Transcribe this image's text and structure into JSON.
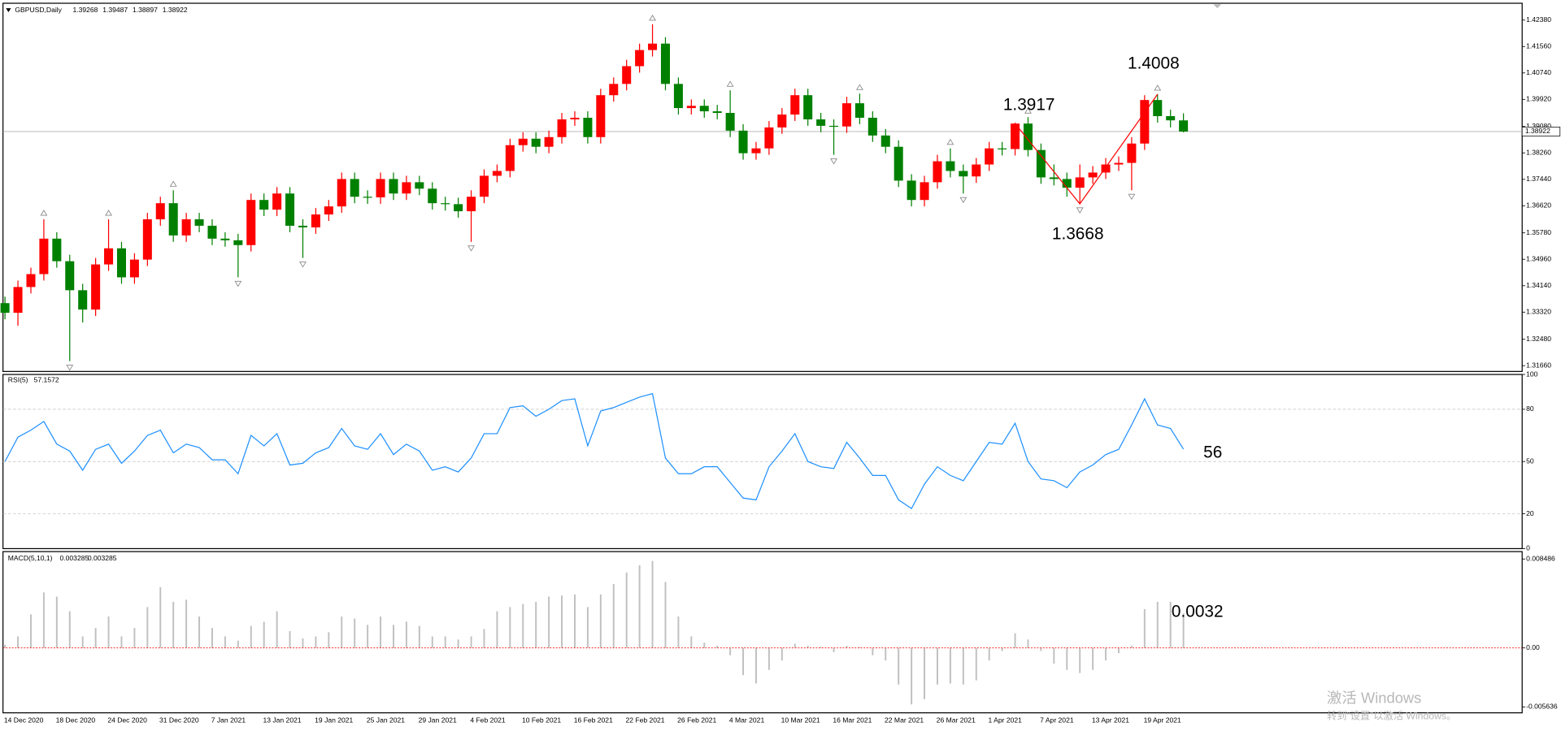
{
  "chart_data": [
    {
      "type": "candlestick",
      "title": "GBPUSD,Daily",
      "categories": [
        "14 Dec 2020",
        null,
        null,
        null,
        "18 Dec 2020",
        null,
        null,
        null,
        "24 Dec 2020",
        null,
        null,
        null,
        "31 Dec 2020",
        null,
        null,
        null,
        "7 Jan 2021",
        null,
        null,
        null,
        "13 Jan 2021",
        null,
        null,
        null,
        "19 Jan 2021",
        null,
        null,
        null,
        "25 Jan 2021",
        null,
        null,
        null,
        "29 Jan 2021",
        null,
        null,
        null,
        "4 Feb 2021",
        null,
        null,
        null,
        "10 Feb 2021",
        null,
        null,
        null,
        "16 Feb 2021",
        null,
        null,
        null,
        "22 Feb 2021",
        null,
        null,
        null,
        "26 Feb 2021",
        null,
        null,
        null,
        "4 Mar 2021",
        null,
        null,
        null,
        "10 Mar 2021",
        null,
        null,
        null,
        "16 Mar 2021",
        null,
        null,
        null,
        "22 Mar 2021",
        null,
        null,
        null,
        "26 Mar 2021",
        null,
        null,
        null,
        "1 Apr 2021",
        null,
        null,
        null,
        "7 Apr 2021",
        null,
        null,
        null,
        "13 Apr 2021",
        null,
        null,
        null,
        "19 Apr 2021",
        null,
        null,
        null
      ],
      "open": [
        1.336,
        1.333,
        1.341,
        1.345,
        1.356,
        1.349,
        1.34,
        1.334,
        1.348,
        1.353,
        1.344,
        1.3495,
        1.362,
        1.367,
        1.357,
        1.362,
        1.36,
        1.356,
        1.3555,
        1.354,
        1.368,
        1.365,
        1.37,
        1.36,
        1.3595,
        1.3635,
        1.366,
        1.3745,
        1.369,
        1.3688,
        1.3745,
        1.37,
        1.3735,
        1.3715,
        1.367,
        1.3667,
        1.3645,
        1.369,
        1.3755,
        1.377,
        1.385,
        1.387,
        1.3845,
        1.3875,
        1.393,
        1.3935,
        1.3875,
        1.4005,
        1.404,
        1.4095,
        1.4145,
        1.4165,
        1.404,
        1.3965,
        1.3972,
        1.3955,
        1.395,
        1.3895,
        1.3825,
        1.384,
        1.3905,
        1.3945,
        1.4005,
        1.393,
        1.391,
        1.3908,
        1.398,
        1.3935,
        1.388,
        1.3845,
        1.374,
        1.368,
        1.3735,
        1.38,
        1.377,
        1.3753,
        1.379,
        1.384,
        1.3838,
        1.3917,
        1.3835,
        1.375,
        1.3745,
        1.3718,
        1.375,
        1.3765,
        1.379,
        1.3795,
        1.3855,
        1.399,
        1.394,
        1.39268
      ],
      "high": [
        1.338,
        1.343,
        1.347,
        1.362,
        1.358,
        1.351,
        1.342,
        1.35,
        1.362,
        1.355,
        1.3515,
        1.364,
        1.369,
        1.371,
        1.364,
        1.364,
        1.362,
        1.358,
        1.3575,
        1.37,
        1.37,
        1.372,
        1.372,
        1.362,
        1.3655,
        1.368,
        1.3765,
        1.3765,
        1.371,
        1.3765,
        1.3765,
        1.3755,
        1.3755,
        1.3735,
        1.369,
        1.3687,
        1.371,
        1.3775,
        1.379,
        1.387,
        1.389,
        1.389,
        1.3895,
        1.395,
        1.3955,
        1.3955,
        1.4025,
        1.406,
        1.4115,
        1.4165,
        1.4225,
        1.4185,
        1.406,
        1.3992,
        1.3992,
        1.3975,
        1.402,
        1.3915,
        1.386,
        1.3925,
        1.3965,
        1.4025,
        1.4025,
        1.395,
        1.393,
        1.4,
        1.401,
        1.3955,
        1.39,
        1.3865,
        1.376,
        1.3755,
        1.382,
        1.384,
        1.379,
        1.381,
        1.386,
        1.386,
        1.392,
        1.3937,
        1.3855,
        1.379,
        1.3765,
        1.379,
        1.3785,
        1.381,
        1.3815,
        1.3875,
        1.4005,
        1.4008,
        1.396,
        1.39487
      ],
      "low": [
        1.331,
        1.329,
        1.339,
        1.343,
        1.347,
        1.318,
        1.33,
        1.332,
        1.346,
        1.342,
        1.342,
        1.3475,
        1.36,
        1.355,
        1.355,
        1.358,
        1.354,
        1.3535,
        1.344,
        1.352,
        1.363,
        1.363,
        1.358,
        1.35,
        1.3575,
        1.3615,
        1.364,
        1.367,
        1.3668,
        1.3668,
        1.368,
        1.368,
        1.3695,
        1.365,
        1.3647,
        1.3625,
        1.355,
        1.367,
        1.3735,
        1.375,
        1.383,
        1.3825,
        1.3825,
        1.3855,
        1.391,
        1.3855,
        1.3855,
        1.3985,
        1.402,
        1.4075,
        1.4125,
        1.402,
        1.3945,
        1.3945,
        1.3935,
        1.393,
        1.3875,
        1.3805,
        1.3805,
        1.382,
        1.3885,
        1.3925,
        1.391,
        1.389,
        1.382,
        1.3888,
        1.3915,
        1.386,
        1.3825,
        1.372,
        1.366,
        1.366,
        1.3715,
        1.375,
        1.37,
        1.3733,
        1.377,
        1.3818,
        1.3818,
        1.3815,
        1.373,
        1.3725,
        1.369,
        1.3668,
        1.373,
        1.3745,
        1.377,
        1.371,
        1.3835,
        1.392,
        1.3905,
        1.38897
      ],
      "close": [
        1.333,
        1.341,
        1.345,
        1.356,
        1.349,
        1.34,
        1.334,
        1.348,
        1.353,
        1.344,
        1.3495,
        1.362,
        1.367,
        1.357,
        1.362,
        1.36,
        1.356,
        1.3555,
        1.354,
        1.368,
        1.365,
        1.37,
        1.36,
        1.3595,
        1.3635,
        1.366,
        1.3745,
        1.369,
        1.3688,
        1.3745,
        1.37,
        1.3735,
        1.3715,
        1.367,
        1.3667,
        1.3645,
        1.369,
        1.3755,
        1.377,
        1.385,
        1.387,
        1.3845,
        1.3875,
        1.393,
        1.3935,
        1.3875,
        1.4005,
        1.404,
        1.4095,
        1.4145,
        1.4165,
        1.404,
        1.3965,
        1.3972,
        1.3955,
        1.395,
        1.3895,
        1.3825,
        1.384,
        1.3905,
        1.3945,
        1.4005,
        1.393,
        1.391,
        1.3908,
        1.398,
        1.3935,
        1.388,
        1.3845,
        1.374,
        1.368,
        1.3735,
        1.38,
        1.377,
        1.3753,
        1.379,
        1.384,
        1.3838,
        1.3917,
        1.3835,
        1.375,
        1.3745,
        1.3718,
        1.375,
        1.3765,
        1.379,
        1.3795,
        1.3855,
        1.399,
        1.394,
        1.3927,
        1.38922
      ],
      "up_color": "#ff0000",
      "down_color": "#008000",
      "ylim": [
        1.3148,
        1.4284
      ],
      "yticks": [
        {
          "value": 1.4238,
          "label": "1.42380"
        },
        {
          "value": 1.4156,
          "label": "1.41560"
        },
        {
          "value": 1.4074,
          "label": "1.40740"
        },
        {
          "value": 1.3992,
          "label": "1.39920"
        },
        {
          "value": 1.3908,
          "label": "1.39080"
        },
        {
          "value": 1.3826,
          "label": "1.38260"
        },
        {
          "value": 1.3744,
          "label": "1.37440"
        },
        {
          "value": 1.3662,
          "label": "1.36620"
        },
        {
          "value": 1.3578,
          "label": "1.35780"
        },
        {
          "value": 1.3496,
          "label": "1.34960"
        },
        {
          "value": 1.3414,
          "label": "1.34140"
        },
        {
          "value": 1.3332,
          "label": "1.33320"
        },
        {
          "value": 1.3248,
          "label": "1.32480"
        },
        {
          "value": 1.3166,
          "label": "1.31660"
        }
      ],
      "annotations": [
        1.3917,
        1.4008,
        1.3668
      ],
      "annotation_color": "#ff0000"
    },
    {
      "type": "line",
      "title": "RSI(5)",
      "color": "#1e90ff",
      "values": [
        50,
        64,
        68,
        73,
        60,
        56,
        45,
        57,
        60,
        49,
        56,
        65,
        68,
        55,
        60,
        58,
        51,
        51,
        43,
        65,
        59,
        66,
        48,
        49,
        55,
        58,
        69,
        59,
        57,
        66,
        54,
        60,
        56,
        45,
        47,
        44,
        52,
        66,
        66,
        81,
        82,
        76,
        80,
        85,
        86,
        59,
        79,
        81,
        84,
        87,
        89,
        52,
        43,
        43,
        47,
        47,
        38,
        29,
        28,
        47,
        56,
        66,
        50,
        47,
        46,
        61,
        52,
        42,
        42,
        28,
        23,
        37,
        47,
        42,
        39,
        50,
        61,
        60,
        72,
        50,
        40,
        39,
        35,
        44,
        48,
        54,
        57,
        71,
        86,
        71,
        69,
        57.1572
      ],
      "ylim": [
        0,
        100
      ],
      "yticks": [
        0,
        20,
        50,
        80,
        100
      ],
      "annotations": [
        56
      ],
      "annotation_color": "#ff0000"
    },
    {
      "type": "bar",
      "title": "MACD(5,10,1)",
      "color": "#c0c0c0",
      "signal": 0.003285,
      "zero_line_color": "#ff0000",
      "values": [
        0.0003,
        0.0011,
        0.0032,
        0.0053,
        0.0049,
        0.0035,
        0.0011,
        0.0019,
        0.003,
        0.0011,
        0.0019,
        0.0039,
        0.0058,
        0.0044,
        0.0046,
        0.003,
        0.0019,
        0.0011,
        0.0007,
        0.0021,
        0.0025,
        0.0035,
        0.0016,
        0.0009,
        0.0011,
        0.0015,
        0.003,
        0.0028,
        0.0022,
        0.003,
        0.0022,
        0.0025,
        0.0021,
        0.0011,
        0.0011,
        0.0008,
        0.0011,
        0.0018,
        0.0035,
        0.0039,
        0.0042,
        0.0044,
        0.0049,
        0.005,
        0.0051,
        0.0039,
        0.0051,
        0.0061,
        0.0072,
        0.0079,
        0.0083,
        0.0063,
        0.003,
        0.0011,
        0.0005,
        0.0002,
        -0.0007,
        -0.0026,
        -0.0034,
        -0.0021,
        -0.0012,
        0.0004,
        0.0002,
        0.0001,
        -0.0004,
        0.0002,
        0.0001,
        -0.0007,
        -0.0012,
        -0.0035,
        -0.0054,
        -0.0049,
        -0.0035,
        -0.0034,
        -0.0035,
        -0.0031,
        -0.0012,
        -0.0003,
        0.0014,
        0.0008,
        -0.0003,
        -0.0015,
        -0.0021,
        -0.0024,
        -0.0021,
        -0.0012,
        -0.0005,
        0.0002,
        0.0037,
        0.0044,
        0.0044,
        0.003285
      ],
      "ylim": [
        -0.0062,
        0.0091
      ],
      "yticks": [
        0.008486,
        {
          "value": 0,
          "label": "0.00"
        },
        -0.005636
      ],
      "annotations": [
        0.0032
      ],
      "annotation_color": "#ff0000"
    }
  ],
  "watermark": [
    "激活 Windows",
    "转到“设置”以激活 Windows。"
  ]
}
